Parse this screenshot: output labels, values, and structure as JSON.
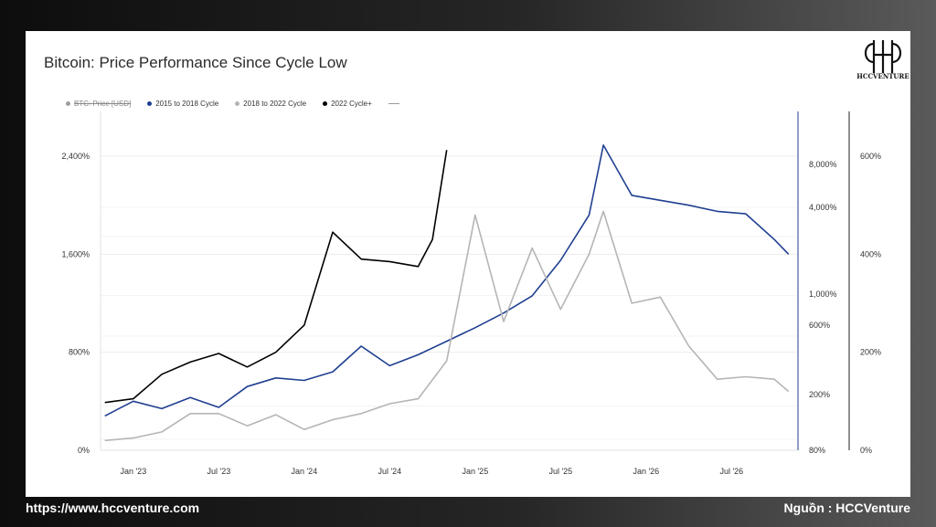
{
  "title": "Bitcoin: Price Performance Since Cycle Low",
  "logo_text": "HCCVENTURE",
  "footer": {
    "url": "https://www.hccventure.com",
    "source": "Nguồn : HCCVenture"
  },
  "legend": [
    {
      "label": "BTC: Price [USD]",
      "color": "#9e9e9e",
      "disabled": true
    },
    {
      "label": "2015 to 2018 Cycle",
      "color": "#1f3f91"
    },
    {
      "label": "2018 to 2022 Cycle",
      "color": "#b5b5b5"
    },
    {
      "label": "2022 Cycle+",
      "color": "#000000"
    }
  ],
  "chart_data": {
    "type": "line",
    "title": "Bitcoin: Price Performance Since Cycle Low",
    "x_ticks": [
      "Jan '23",
      "Jul '23",
      "Jan '24",
      "Jul '24",
      "Jan '25",
      "Jul '25",
      "Jan '26",
      "Jul '26"
    ],
    "left_axis_ticks": [
      "0%",
      "800%",
      "1,600%",
      "2,400%"
    ],
    "left_axis_range": [
      0,
      2400
    ],
    "mid_axis_ticks": [
      "80%",
      "200%",
      "600%",
      "1,000%",
      "4,000%",
      "8,000%"
    ],
    "right_axis_ticks": [
      "0%",
      "200%",
      "400%",
      "600%"
    ],
    "grid": "horizontal",
    "legend_position": "top-left",
    "series": [
      {
        "name": "2015 to 2018 Cycle",
        "color": "#1f3f91",
        "x": [
          "2022-11",
          "2023-01",
          "2023-03",
          "2023-05",
          "2023-07",
          "2023-09",
          "2023-11",
          "2024-01",
          "2024-03",
          "2024-05",
          "2024-07",
          "2024-09",
          "2024-11",
          "2025-01",
          "2025-03",
          "2025-05",
          "2025-07",
          "2025-09",
          "2025-10",
          "2025-12",
          "2026-02",
          "2026-04",
          "2026-06",
          "2026-08",
          "2026-10",
          "2026-11"
        ],
        "values": [
          280,
          400,
          340,
          430,
          350,
          520,
          590,
          570,
          640,
          850,
          690,
          780,
          890,
          1000,
          1120,
          1260,
          1550,
          1920,
          2490,
          2080,
          2040,
          2000,
          1950,
          1930,
          1720,
          1600
        ]
      },
      {
        "name": "2018 to 2022 Cycle",
        "color": "#b5b5b5",
        "x": [
          "2022-11",
          "2023-01",
          "2023-03",
          "2023-05",
          "2023-07",
          "2023-09",
          "2023-11",
          "2024-01",
          "2024-03",
          "2024-05",
          "2024-07",
          "2024-09",
          "2024-11",
          "2025-01",
          "2025-03",
          "2025-05",
          "2025-07",
          "2025-09",
          "2025-10",
          "2025-12",
          "2026-02",
          "2026-04",
          "2026-06",
          "2026-08",
          "2026-10",
          "2026-11"
        ],
        "values": [
          80,
          100,
          150,
          300,
          300,
          200,
          290,
          170,
          250,
          300,
          380,
          420,
          730,
          1920,
          1050,
          1650,
          1150,
          1600,
          1950,
          1200,
          1250,
          850,
          580,
          600,
          580,
          480
        ]
      },
      {
        "name": "2022 Cycle+",
        "color": "#000000",
        "x": [
          "2022-11",
          "2023-01",
          "2023-03",
          "2023-05",
          "2023-07",
          "2023-09",
          "2023-11",
          "2024-01",
          "2024-03",
          "2024-05",
          "2024-07",
          "2024-09",
          "2024-10",
          "2024-11"
        ],
        "values": [
          390,
          420,
          620,
          720,
          790,
          680,
          800,
          1020,
          1780,
          1560,
          1540,
          1500,
          1720,
          2450
        ]
      }
    ]
  }
}
